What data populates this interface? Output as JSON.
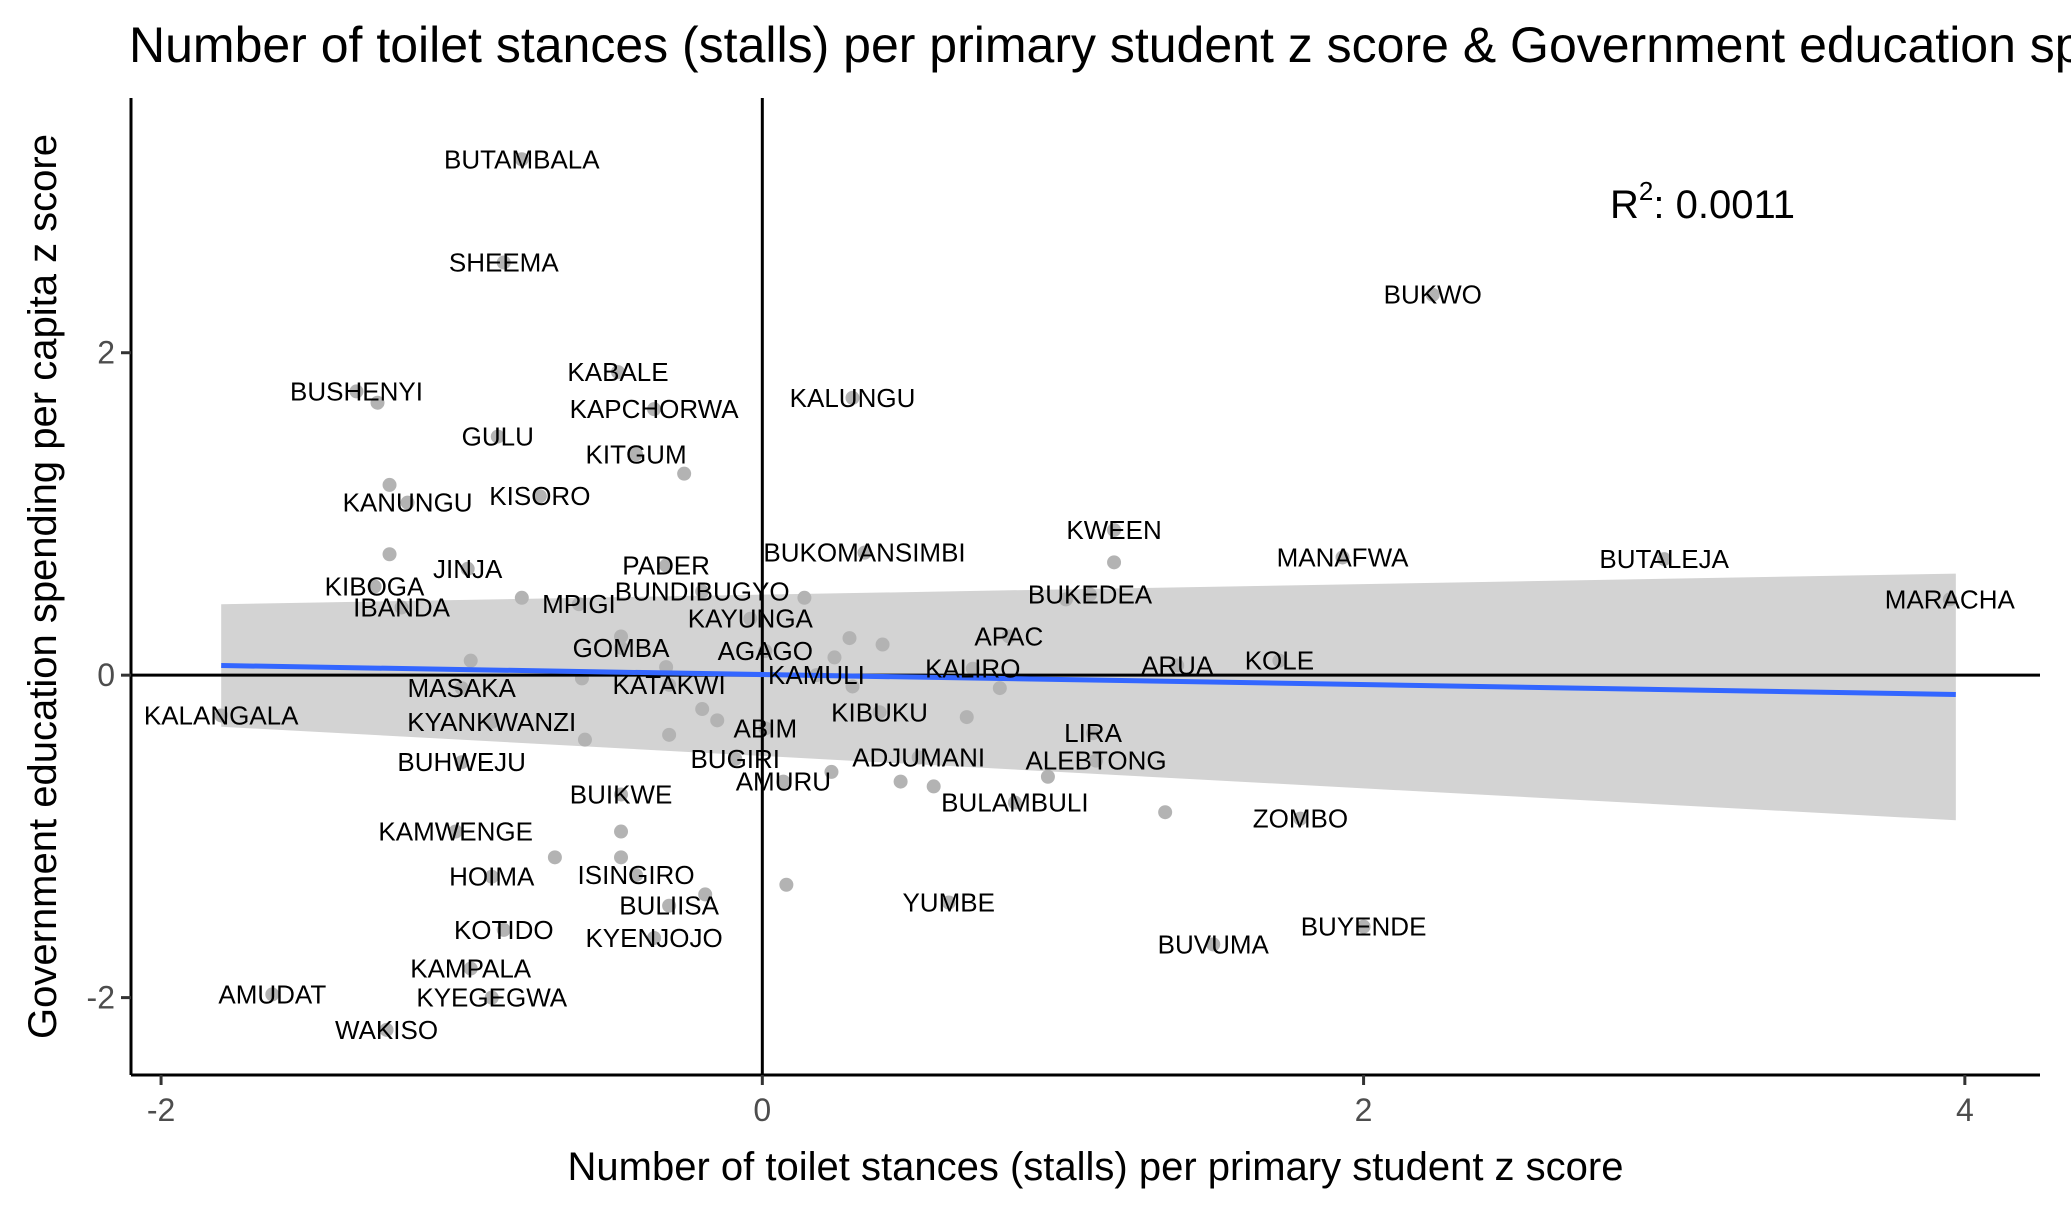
{
  "chart_data": {
    "type": "scatter",
    "title": "Number of toilet stances (stalls) per primary student z score & Government education spending per capita z score",
    "xlabel": "Number of toilet stances (stalls) per primary student z score",
    "ylabel": "Government education spending per capita z score",
    "xlim": [
      -2.1,
      4.25
    ],
    "ylim": [
      -2.48,
      3.58
    ],
    "x_ticks": [
      -2,
      0,
      2,
      4
    ],
    "y_ticks": [
      -2,
      0,
      2
    ],
    "annotation": {
      "base": "R",
      "exponent": "2",
      "text": ": 0.0011"
    },
    "regression": {
      "x_start": -1.8,
      "x_end": 3.97,
      "y_start": 0.06,
      "y_end": -0.12,
      "ci_start": [
        -0.32,
        0.44
      ],
      "ci_end": [
        -0.9,
        0.63
      ]
    },
    "points": [
      {
        "label": "BUTAMBALA",
        "x": -0.8,
        "y": 3.2
      },
      {
        "label": "SHEEMA",
        "x": -0.86,
        "y": 2.56
      },
      {
        "label": "BUKWO",
        "x": 2.23,
        "y": 2.36
      },
      {
        "label": "KABALE",
        "x": -0.48,
        "y": 1.88
      },
      {
        "label": "BUSHENYI",
        "x": -1.35,
        "y": 1.76
      },
      {
        "label": "KAPCHORWA",
        "x": -0.36,
        "y": 1.65
      },
      {
        "label": "KALUNGU",
        "x": 0.3,
        "y": 1.72
      },
      {
        "label": "GULU",
        "x": -0.88,
        "y": 1.48
      },
      {
        "label": "KITGUM",
        "x": -0.42,
        "y": 1.37
      },
      {
        "label": "KANUNGU",
        "x": -1.18,
        "y": 1.07
      },
      {
        "label": "KISORO",
        "x": -0.74,
        "y": 1.11
      },
      {
        "label": "KWEEN",
        "x": 1.17,
        "y": 0.9
      },
      {
        "label": "MANAFWA",
        "x": 1.93,
        "y": 0.73
      },
      {
        "label": "BUTALEJA",
        "x": 3.0,
        "y": 0.72
      },
      {
        "label": "MARACHA",
        "x": 3.95,
        "y": 0.47
      },
      {
        "label": "JINJA",
        "x": -0.98,
        "y": 0.66
      },
      {
        "label": "PADER",
        "x": -0.32,
        "y": 0.68
      },
      {
        "label": "BUKOMANSIMBI",
        "x": 0.34,
        "y": 0.76
      },
      {
        "label": "KIBOGA",
        "x": -1.29,
        "y": 0.55
      },
      {
        "label": "BUNDIBUGYO",
        "x": -0.2,
        "y": 0.52
      },
      {
        "label": "BUKEDEA",
        "x": 1.09,
        "y": 0.5
      },
      {
        "label": "IBANDA",
        "x": -1.2,
        "y": 0.42
      },
      {
        "label": "MPIGI",
        "x": -0.61,
        "y": 0.44
      },
      {
        "label": "KAYUNGA",
        "x": -0.04,
        "y": 0.35
      },
      {
        "label": "APAC",
        "x": 0.82,
        "y": 0.24
      },
      {
        "label": "GOMBA",
        "x": -0.47,
        "y": 0.17
      },
      {
        "label": "AGAGO",
        "x": 0.01,
        "y": 0.15
      },
      {
        "label": "ARUA",
        "x": 1.38,
        "y": 0.06
      },
      {
        "label": "KOLE",
        "x": 1.72,
        "y": 0.09
      },
      {
        "label": "KALIRO",
        "x": 0.7,
        "y": 0.04
      },
      {
        "label": "KAMULI",
        "x": 0.18,
        "y": 0.0
      },
      {
        "label": "KATAKWI",
        "x": -0.31,
        "y": -0.06
      },
      {
        "label": "MASAKA",
        "x": -1.0,
        "y": -0.08
      },
      {
        "label": "KALANGALA",
        "x": -1.8,
        "y": -0.25
      },
      {
        "label": "KYANKWANZI",
        "x": -0.9,
        "y": -0.29
      },
      {
        "label": "KIBUKU",
        "x": 0.39,
        "y": -0.23
      },
      {
        "label": "ABIM",
        "x": 0.01,
        "y": -0.33
      },
      {
        "label": "LIRA",
        "x": 1.1,
        "y": -0.36
      },
      {
        "label": "BUHWEJU",
        "x": -1.0,
        "y": -0.54
      },
      {
        "label": "BUGIRI",
        "x": -0.09,
        "y": -0.52
      },
      {
        "label": "ADJUMANI",
        "x": 0.52,
        "y": -0.51
      },
      {
        "label": "ALEBTONG",
        "x": 1.11,
        "y": -0.53
      },
      {
        "label": "AMURU",
        "x": 0.07,
        "y": -0.66
      },
      {
        "label": "BUIKWE",
        "x": -0.47,
        "y": -0.74
      },
      {
        "label": "BULAMBULI",
        "x": 0.84,
        "y": -0.79
      },
      {
        "label": "ZOMBO",
        "x": 1.79,
        "y": -0.89
      },
      {
        "label": "KAMWENGE",
        "x": -1.02,
        "y": -0.97
      },
      {
        "label": "HOIMA",
        "x": -0.9,
        "y": -1.25
      },
      {
        "label": "ISINGIRO",
        "x": -0.42,
        "y": -1.24
      },
      {
        "label": "BULIISA",
        "x": -0.31,
        "y": -1.43
      },
      {
        "label": "YUMBE",
        "x": 0.62,
        "y": -1.41
      },
      {
        "label": "KOTIDO",
        "x": -0.86,
        "y": -1.58
      },
      {
        "label": "KYENJOJO",
        "x": -0.36,
        "y": -1.63
      },
      {
        "label": "BUYENDE",
        "x": 2.0,
        "y": -1.56
      },
      {
        "label": "BUVUMA",
        "x": 1.5,
        "y": -1.67
      },
      {
        "label": "KAMPALA",
        "x": -0.97,
        "y": -1.82
      },
      {
        "label": "AMUDAT",
        "x": -1.63,
        "y": -1.98
      },
      {
        "label": "KYEGEGWA",
        "x": -0.9,
        "y": -2.0
      },
      {
        "label": "WAKISO",
        "x": -1.25,
        "y": -2.2
      }
    ],
    "extra_points": [
      {
        "x": -1.28,
        "y": 1.69
      },
      {
        "x": -1.24,
        "y": 1.18
      },
      {
        "x": -1.24,
        "y": 0.75
      },
      {
        "x": -0.8,
        "y": 0.48
      },
      {
        "x": -0.26,
        "y": 1.25
      },
      {
        "x": 0.14,
        "y": 0.48
      },
      {
        "x": 1.17,
        "y": 0.7
      },
      {
        "x": 1.01,
        "y": 0.47
      },
      {
        "x": 0.29,
        "y": 0.23
      },
      {
        "x": 0.4,
        "y": 0.19
      },
      {
        "x": 0.24,
        "y": 0.11
      },
      {
        "x": -0.47,
        "y": 0.24
      },
      {
        "x": -0.32,
        "y": 0.05
      },
      {
        "x": -0.6,
        "y": -0.02
      },
      {
        "x": -0.97,
        "y": 0.09
      },
      {
        "x": 0.3,
        "y": -0.07
      },
      {
        "x": 0.79,
        "y": -0.08
      },
      {
        "x": -0.2,
        "y": -0.21
      },
      {
        "x": -0.15,
        "y": -0.28
      },
      {
        "x": 0.68,
        "y": -0.26
      },
      {
        "x": -0.31,
        "y": -0.37
      },
      {
        "x": -0.59,
        "y": -0.4
      },
      {
        "x": 0.23,
        "y": -0.6
      },
      {
        "x": 0.46,
        "y": -0.66
      },
      {
        "x": 0.57,
        "y": -0.69
      },
      {
        "x": 0.95,
        "y": -0.63
      },
      {
        "x": 1.34,
        "y": -0.85
      },
      {
        "x": -0.47,
        "y": -0.97
      },
      {
        "x": -0.69,
        "y": -1.13
      },
      {
        "x": -0.47,
        "y": -1.13
      },
      {
        "x": 0.08,
        "y": -1.3
      },
      {
        "x": -0.19,
        "y": -1.36
      }
    ]
  }
}
